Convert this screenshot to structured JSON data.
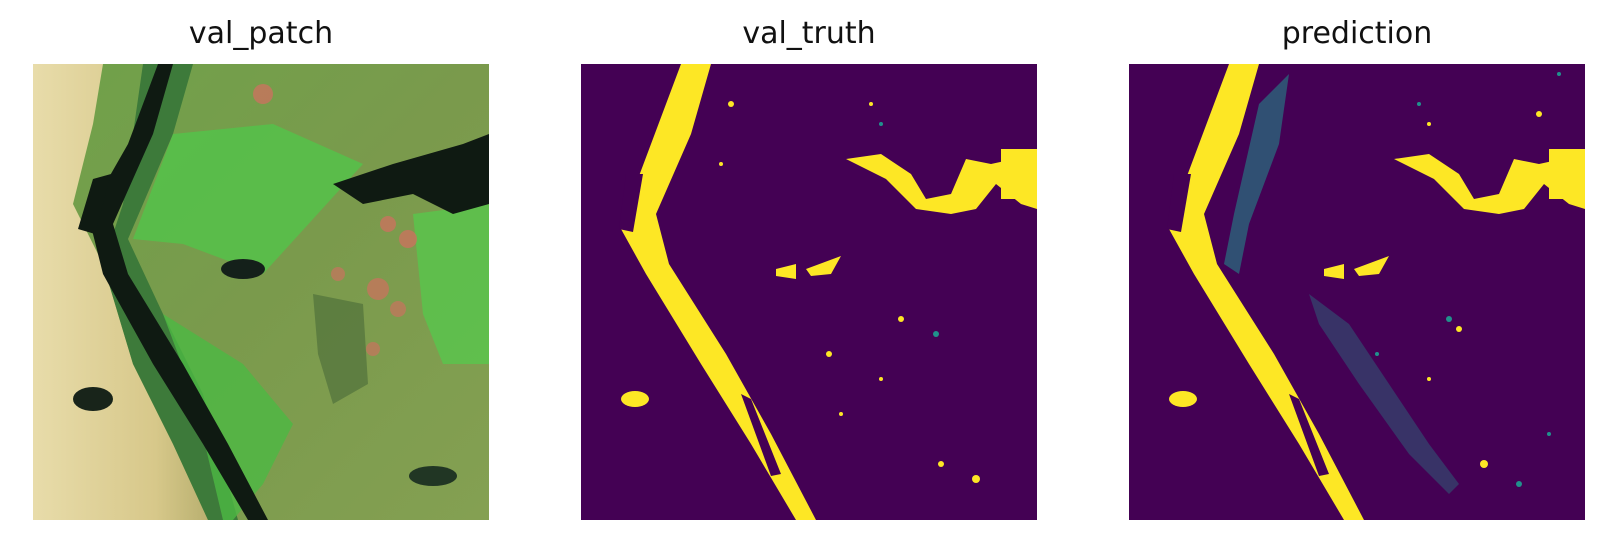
{
  "panels": [
    {
      "title": "val_patch"
    },
    {
      "title": "val_truth"
    },
    {
      "title": "prediction"
    }
  ],
  "colors": {
    "mask_background": "#440154",
    "mask_foreground": "#fde725",
    "mask_mid": "#21918c",
    "water_dark": "#0f1a12",
    "vegetation_green": "#5cc84a",
    "sand_beige": "#e2d6a0",
    "bare_soil_red": "#c9735e"
  }
}
